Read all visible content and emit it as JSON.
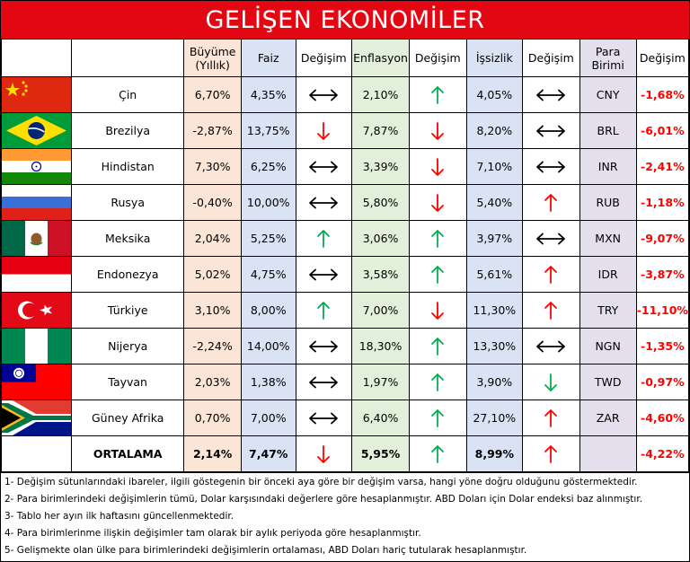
{
  "title": "GELİŞEN EKONOMİLER",
  "headers": {
    "growth": "Büyüme (Yıllık)",
    "rate": "Faiz",
    "change": "Değişim",
    "inflation": "Enflasyon",
    "unemployment": "İşsizlik",
    "currency": "Para Birimi",
    "fx_change": "Değişim"
  },
  "rows": [
    {
      "flag": "china-flag",
      "country": "Çin",
      "growth": "6,70%",
      "rate": "4,35%",
      "rate_dir": "both",
      "inflation": "2,10%",
      "infl_dir": "up",
      "unemployment": "4,05%",
      "unemp_dir": "both",
      "currency": "CNY",
      "fx_change": "-1,68%"
    },
    {
      "flag": "brazil-flag",
      "country": "Brezilya",
      "growth": "-2,87%",
      "rate": "13,75%",
      "rate_dir": "down",
      "inflation": "7,87%",
      "infl_dir": "down",
      "unemployment": "8,20%",
      "unemp_dir": "both",
      "currency": "BRL",
      "fx_change": "-6,01%"
    },
    {
      "flag": "india-flag",
      "country": "Hindistan",
      "growth": "7,30%",
      "rate": "6,25%",
      "rate_dir": "both",
      "inflation": "3,39%",
      "infl_dir": "down",
      "unemployment": "7,10%",
      "unemp_dir": "both",
      "currency": "INR",
      "fx_change": "-2,41%"
    },
    {
      "flag": "russia-flag",
      "country": "Rusya",
      "growth": "-0,40%",
      "rate": "10,00%",
      "rate_dir": "both",
      "inflation": "5,80%",
      "infl_dir": "down",
      "unemployment": "5,40%",
      "unemp_dir": "up-red",
      "currency": "RUB",
      "fx_change": "-1,18%"
    },
    {
      "flag": "mexico-flag",
      "country": "Meksika",
      "growth": "2,04%",
      "rate": "5,25%",
      "rate_dir": "up",
      "inflation": "3,06%",
      "infl_dir": "up",
      "unemployment": "3,97%",
      "unemp_dir": "both",
      "currency": "MXN",
      "fx_change": "-9,07%"
    },
    {
      "flag": "indonesia-flag",
      "country": "Endonezya",
      "growth": "5,02%",
      "rate": "4,75%",
      "rate_dir": "both",
      "inflation": "3,58%",
      "infl_dir": "up",
      "unemployment": "5,61%",
      "unemp_dir": "up-red",
      "currency": "IDR",
      "fx_change": "-3,87%"
    },
    {
      "flag": "turkey-flag",
      "country": "Türkiye",
      "growth": "3,10%",
      "rate": "8,00%",
      "rate_dir": "up",
      "inflation": "7,00%",
      "infl_dir": "down",
      "unemployment": "11,30%",
      "unemp_dir": "up-red",
      "currency": "TRY",
      "fx_change": "-11,10%"
    },
    {
      "flag": "nigeria-flag",
      "country": "Nijerya",
      "growth": "-2,24%",
      "rate": "14,00%",
      "rate_dir": "both",
      "inflation": "18,30%",
      "infl_dir": "up",
      "unemployment": "13,30%",
      "unemp_dir": "both",
      "currency": "NGN",
      "fx_change": "-1,35%"
    },
    {
      "flag": "taiwan-flag",
      "country": "Tayvan",
      "growth": "2,03%",
      "rate": "1,38%",
      "rate_dir": "both",
      "inflation": "1,97%",
      "infl_dir": "up",
      "unemployment": "3,90%",
      "unemp_dir": "down-green",
      "currency": "TWD",
      "fx_change": "-0,97%"
    },
    {
      "flag": "south-africa-flag",
      "country": "Güney Afrika",
      "growth": "0,70%",
      "rate": "7,00%",
      "rate_dir": "both",
      "inflation": "6,40%",
      "infl_dir": "up",
      "unemployment": "27,10%",
      "unemp_dir": "up-red",
      "currency": "ZAR",
      "fx_change": "-4,60%"
    }
  ],
  "average": {
    "label": "ORTALAMA",
    "growth": "2,14%",
    "rate": "7,47%",
    "rate_dir": "down",
    "inflation": "5,95%",
    "infl_dir": "up",
    "unemployment": "8,99%",
    "unemp_dir": "up-red",
    "fx_change": "-4,22%"
  },
  "notes": [
    "1- Değişim sütunlarındaki ibareler, ilgili göstegenin bir önceki aya göre bir değişim varsa, hangi yöne doğru olduğunu göstermektedir.",
    "2- Para birimlerindeki değişimlerin tümü, Dolar karşısındaki değerlere göre hesaplanmıştır. ABD Doları  için Dolar endeksi baz alınmıştır.",
    "3- Tablo her ayın ilk haftasını güncellenmektedir.",
    "4- Para birimlerinme ilişkin değişimler tam olarak bir aylık periyoda göre hesaplanmıştır.",
    "5- Gelişmekte olan ülke para birimlerindeki değişimlerin ortalaması, ABD Doları hariç tutularak hesaplanmıştır."
  ],
  "colors": {
    "title_bg": "#e30613",
    "growth_bg": "#fbe5d6",
    "rate_bg": "#dae3f3",
    "inflation_bg": "#e2efda",
    "currency_bg": "#e4dfec",
    "negative_text": "#ff0000",
    "arrow_up_green": "#00b050",
    "arrow_down_red": "#ff0000"
  }
}
